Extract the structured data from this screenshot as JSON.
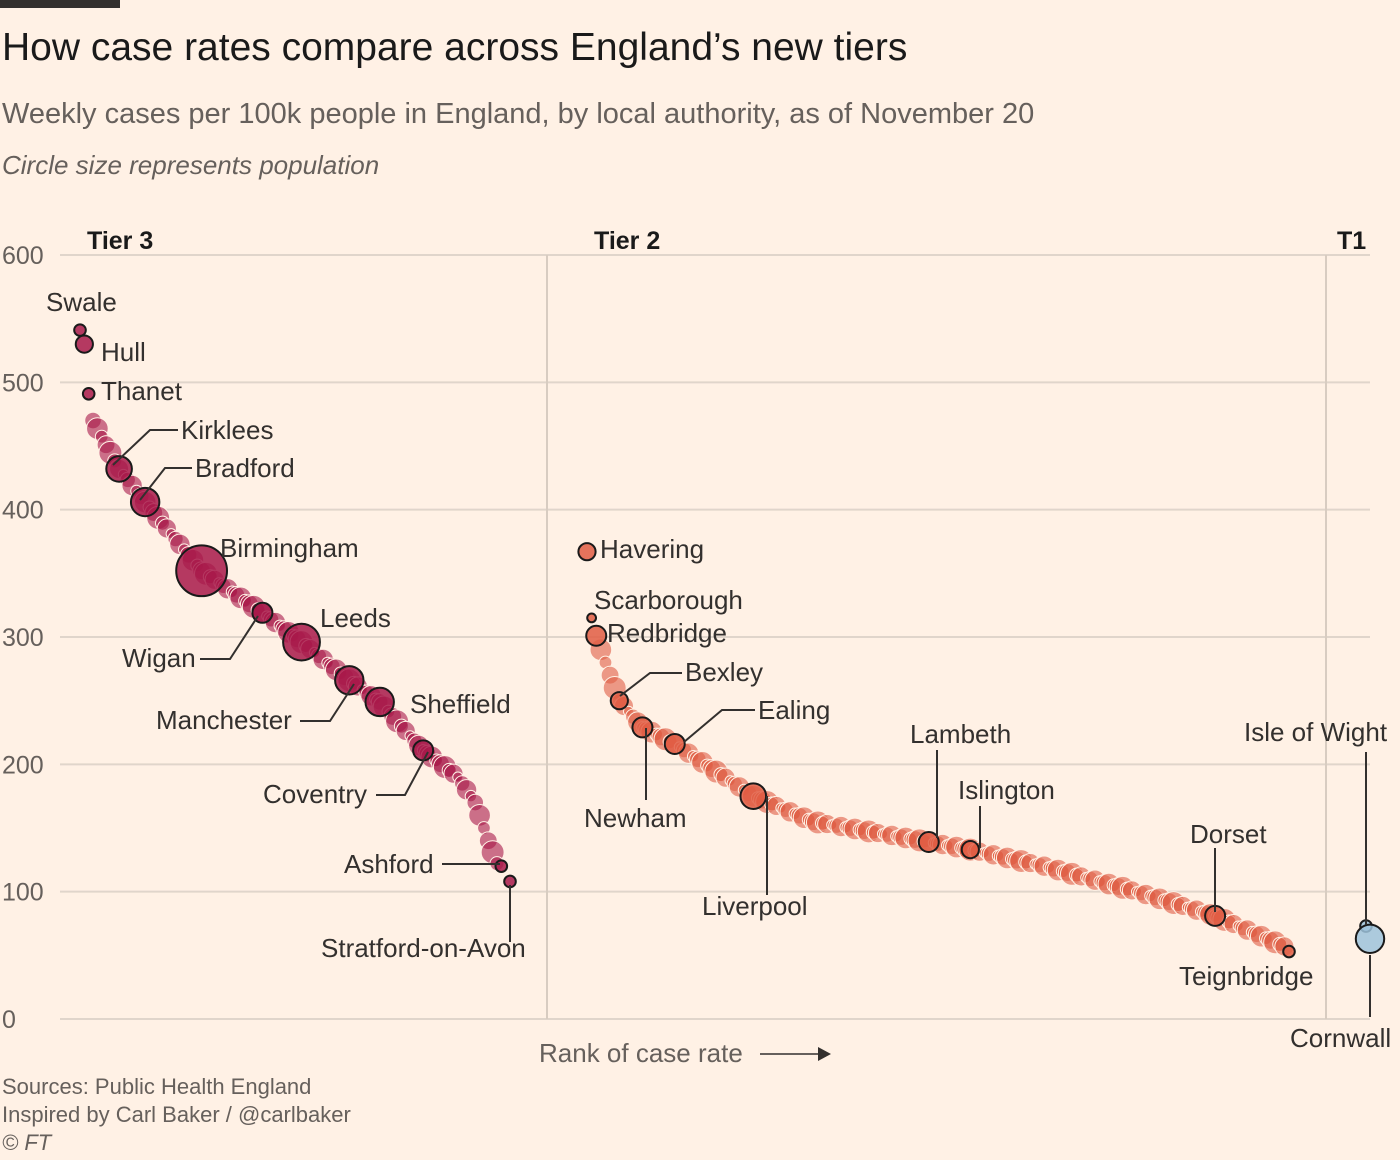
{
  "header": {
    "title": "How case rates compare across England’s new tiers",
    "subtitle": "Weekly cases per 100k people in England, by local authority, as of November 20",
    "note": "Circle size represents population"
  },
  "footer": {
    "source": "Sources: Public Health England",
    "inspired": "Inspired by Carl Baker / @carlbaker",
    "copyright": "© FT"
  },
  "chart_data": {
    "type": "scatter",
    "xlabel": "Rank of case rate",
    "ylabel": "",
    "ylim": [
      0,
      600
    ],
    "yticks": [
      0,
      100,
      200,
      300,
      400,
      500,
      600
    ],
    "grid": true,
    "colors": {
      "tier3": "#a8194a",
      "tier2": "#e05d44",
      "tier1": "#9ec3dc"
    },
    "panels": [
      {
        "name": "Tier 3",
        "ranks": [
          1,
          100
        ]
      },
      {
        "name": "Tier 2",
        "ranks": [
          101,
          260
        ]
      },
      {
        "name": "T1",
        "ranks": [
          261,
          262
        ]
      }
    ],
    "labeled_points": [
      {
        "name": "Swale",
        "tier": "Tier 3",
        "rank": 1,
        "rate": 541,
        "size": 2
      },
      {
        "name": "Hull",
        "tier": "Tier 3",
        "rank": 2,
        "rate": 530,
        "size": 4
      },
      {
        "name": "Thanet",
        "tier": "Tier 3",
        "rank": 3,
        "rate": 491,
        "size": 2
      },
      {
        "name": "Kirklees",
        "tier": "Tier 3",
        "rank": 10,
        "rate": 432,
        "size": 7
      },
      {
        "name": "Bradford",
        "tier": "Tier 3",
        "rank": 16,
        "rate": 406,
        "size": 8
      },
      {
        "name": "Birmingham",
        "tier": "Tier 3",
        "rank": 29,
        "rate": 352,
        "size": 16
      },
      {
        "name": "Wigan",
        "tier": "Tier 3",
        "rank": 43,
        "rate": 319,
        "size": 5
      },
      {
        "name": "Leeds",
        "tier": "Tier 3",
        "rank": 52,
        "rate": 296,
        "size": 11
      },
      {
        "name": "Manchester",
        "tier": "Tier 3",
        "rank": 63,
        "rate": 266,
        "size": 8
      },
      {
        "name": "Sheffield",
        "tier": "Tier 3",
        "rank": 70,
        "rate": 249,
        "size": 8
      },
      {
        "name": "Coventry",
        "tier": "Tier 3",
        "rank": 80,
        "rate": 211,
        "size": 5
      },
      {
        "name": "Ashford",
        "tier": "Tier 3",
        "rank": 98,
        "rate": 120,
        "size": 2
      },
      {
        "name": "Stratford-on-Avon",
        "tier": "Tier 3",
        "rank": 100,
        "rate": 108,
        "size": 2
      },
      {
        "name": "Havering",
        "tier": "Tier 2",
        "rank": 101,
        "rate": 367,
        "size": 4
      },
      {
        "name": "Scarborough",
        "tier": "Tier 2",
        "rank": 102,
        "rate": 315,
        "size": 1
      },
      {
        "name": "Redbridge",
        "tier": "Tier 2",
        "rank": 103,
        "rate": 301,
        "size": 5
      },
      {
        "name": "Bexley",
        "tier": "Tier 2",
        "rank": 108,
        "rate": 250,
        "size": 4
      },
      {
        "name": "Ealing",
        "tier": "Tier 2",
        "rank": 120,
        "rate": 216,
        "size": 5
      },
      {
        "name": "Newham",
        "tier": "Tier 2",
        "rank": 113,
        "rate": 229,
        "size": 5
      },
      {
        "name": "Liverpool",
        "tier": "Tier 2",
        "rank": 137,
        "rate": 175,
        "size": 7
      },
      {
        "name": "Lambeth",
        "tier": "Tier 2",
        "rank": 175,
        "rate": 139,
        "size": 5
      },
      {
        "name": "Islington",
        "tier": "Tier 2",
        "rank": 184,
        "rate": 133,
        "size": 4
      },
      {
        "name": "Dorset",
        "tier": "Tier 2",
        "rank": 237,
        "rate": 81,
        "size": 5
      },
      {
        "name": "Teignbridge",
        "tier": "Tier 2",
        "rank": 253,
        "rate": 53,
        "size": 2
      },
      {
        "name": "Isle of Wight",
        "tier": "T1",
        "rank": 261,
        "rate": 73,
        "size": 2
      },
      {
        "name": "Cornwall",
        "tier": "T1",
        "rank": 262,
        "rate": 63,
        "size": 8
      }
    ],
    "curves": [
      {
        "tier": "Tier 3",
        "ranks": [
          4,
          97
        ],
        "control": [
          [
            4,
            470
          ],
          [
            10,
            432
          ],
          [
            16,
            406
          ],
          [
            29,
            352
          ],
          [
            43,
            319
          ],
          [
            52,
            296
          ],
          [
            63,
            266
          ],
          [
            70,
            249
          ],
          [
            80,
            211
          ],
          [
            88,
            190
          ],
          [
            92,
            170
          ],
          [
            95,
            140
          ],
          [
            97,
            122
          ]
        ]
      },
      {
        "tier": "Tier 2",
        "ranks": [
          104,
          252
        ],
        "control": [
          [
            104,
            290
          ],
          [
            108,
            250
          ],
          [
            113,
            229
          ],
          [
            120,
            216
          ],
          [
            137,
            175
          ],
          [
            150,
            155
          ],
          [
            175,
            139
          ],
          [
            184,
            133
          ],
          [
            200,
            120
          ],
          [
            220,
            100
          ],
          [
            237,
            81
          ],
          [
            252,
            57
          ]
        ]
      }
    ]
  }
}
